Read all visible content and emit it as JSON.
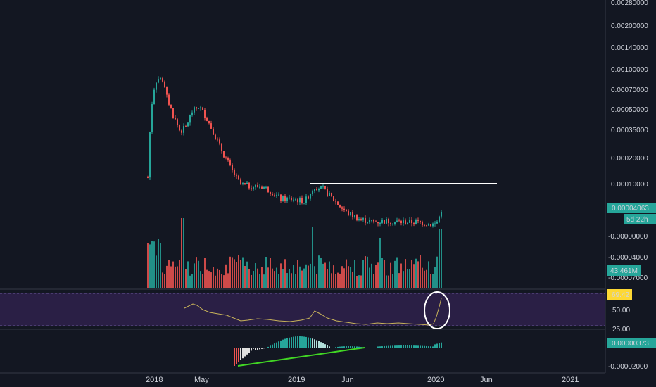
{
  "chart_data": {
    "type": "candlestick",
    "scale": "log",
    "x_axis": {
      "labels": [
        "2018",
        "May",
        "2019",
        "Jun",
        "2020",
        "Jun",
        "2021"
      ]
    },
    "price_axis": {
      "ticks": [
        "0.00280000",
        "0.00200000",
        "0.00140000",
        "0.00100000",
        "0.00070000",
        "0.00050000",
        "0.00035000",
        "0.00020000",
        "0.00010000",
        "-0.00000000",
        "-0.00004000",
        "-0.00007000"
      ],
      "current_price": "0.00004063",
      "countdown": "5d 22h",
      "volume_label": "43.461M"
    },
    "price_series": {
      "start": "2017-12",
      "end": "2020-02",
      "approx_closes": [
        0.00025,
        0.00085,
        0.0008,
        0.00045,
        0.00035,
        0.0005,
        0.00045,
        0.0003,
        0.00018,
        0.00012,
        0.00011,
        0.000105,
        0.0001,
        8e-05,
        7.5e-05,
        8.5e-05,
        0.00011,
        9e-05,
        7e-05,
        5.5e-05,
        5e-05,
        5e-05,
        4.8e-05,
        4.6e-05,
        5.2e-05
      ],
      "resistance_level": 0.0001
    },
    "rsi": {
      "ticks": [
        "50.00",
        "25.00"
      ],
      "current": "69.42",
      "range": [
        25,
        75
      ]
    },
    "macd": {
      "ticks": [
        "-0.00002000"
      ],
      "current": "0.00000373"
    },
    "colors": {
      "background": "#131722",
      "up": "#26a69a",
      "down": "#ef5350",
      "rsi_band": "#2a1f45",
      "rsi_line": "#c8b35a",
      "trendline": "#41d624",
      "resistance": "#ffffff",
      "label_green": "#26a69a",
      "label_yellow": "#fdd835"
    }
  }
}
